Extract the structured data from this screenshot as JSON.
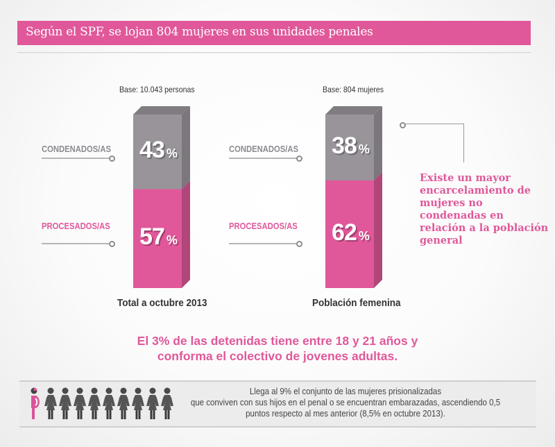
{
  "header": {
    "title": "Según el SPF, se lojan 804 mujeres en sus unidades penales"
  },
  "colors": {
    "accent_pink": "#e0589a",
    "bar_gray": "#98949a",
    "bar_pink": "#e0589a",
    "label_gray": "#8d8a90"
  },
  "chart_data": {
    "type": "bar",
    "stacked": true,
    "categories": [
      "Total a octubre 2013",
      "Población femenina"
    ],
    "bases": [
      "Base: 10.043 personas",
      "Base: 804 mujeres"
    ],
    "series": [
      {
        "name": "CONDENADOS/AS",
        "color": "#98949a",
        "values": [
          43,
          38
        ]
      },
      {
        "name": "PROCESADOS/AS",
        "color": "#e0589a",
        "values": [
          57,
          62
        ]
      }
    ],
    "unit": "%",
    "ylim": [
      0,
      100
    ],
    "grid": false,
    "legend": "left-of-each-bar"
  },
  "bars": [
    {
      "base": "Base: 10.043 personas",
      "caption": "Total a octubre 2013",
      "condenados_label": "CONDENADOS/AS",
      "procesados_label": "PROCESADOS/AS",
      "condenados_value": "43",
      "procesados_value": "57",
      "percent_symbol": "%"
    },
    {
      "base": "Base: 804 mujeres",
      "caption": "Población femenina",
      "condenados_label": "CONDENADOS/AS",
      "procesados_label": "PROCESADOS/AS",
      "condenados_value": "38",
      "procesados_value": "62",
      "percent_symbol": "%"
    }
  ],
  "callout": {
    "text": "Existe un mayor encarcelamiento de mujeres no condenadas en relación a la población general"
  },
  "young_adults": {
    "line1": "El 3% de las detenidas tiene entre 18 y 21 años y",
    "line2": "conforma el colectivo de jovenes adultas."
  },
  "mothers": {
    "figures_total": 10,
    "figures_highlighted": 1,
    "highlight_icon": "pregnant-woman-icon",
    "icon": "woman-icon",
    "line1": "Llega al 9% el conjunto de las mujeres prisionalizadas",
    "line2": "que conviven con sus hijos en el penal o se encuentran embarazadas,  ascendiendo 0,5",
    "line3": "puntos respecto al mes anterior (8,5% en octubre 2013)."
  }
}
